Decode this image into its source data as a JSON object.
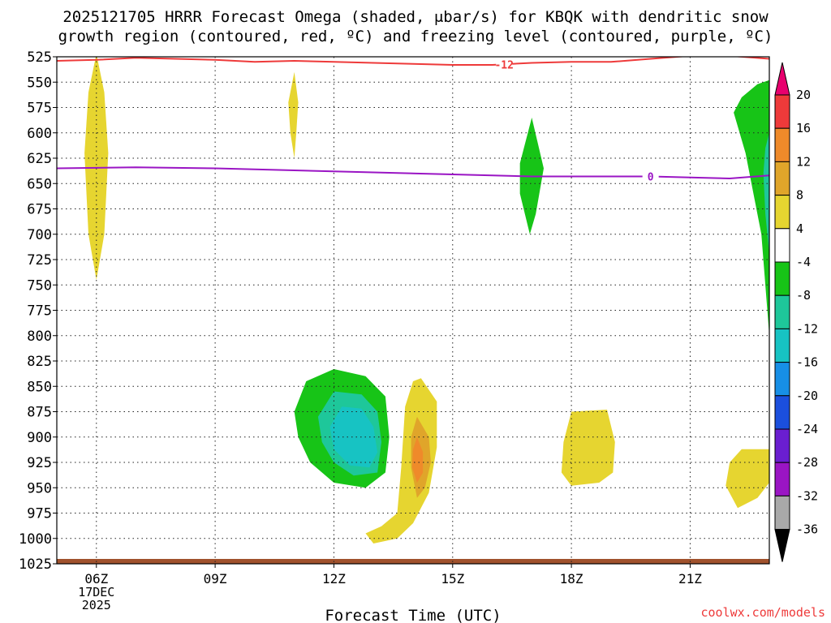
{
  "title": {
    "line1": "2025121705 HRRR Forecast Omega (shaded, μbar/s) for KBQK with dendritic snow",
    "line2": "growth region (contoured, red, ºC) and freezing level (contoured, purple, ºC)"
  },
  "credit": "coolwx.com/models",
  "chart_data": {
    "type": "heatmap",
    "xlabel": "Forecast Time (UTC)",
    "ylabel": "",
    "x_ticks": [
      {
        "label": "06Z",
        "sub": [
          "17DEC",
          "2025"
        ],
        "hour": 6
      },
      {
        "label": "09Z",
        "hour": 9
      },
      {
        "label": "12Z",
        "hour": 12
      },
      {
        "label": "15Z",
        "hour": 15
      },
      {
        "label": "18Z",
        "hour": 18
      },
      {
        "label": "21Z",
        "hour": 21
      }
    ],
    "xlim": [
      5,
      23
    ],
    "ylim": [
      1025,
      525
    ],
    "y_ticks": [
      525,
      550,
      575,
      600,
      625,
      650,
      675,
      700,
      725,
      750,
      775,
      800,
      825,
      850,
      875,
      900,
      925,
      950,
      975,
      1000,
      1025
    ],
    "colorbar": {
      "levels": [
        20,
        16,
        12,
        8,
        4,
        -4,
        -8,
        -12,
        -16,
        -20,
        -24,
        -28,
        -32,
        -36
      ],
      "colors": [
        "#e8006e",
        "#ee3a3a",
        "#ef8a2a",
        "#e0a52a",
        "#e6d530",
        "#ffffff",
        "#17c417",
        "#1ec79a",
        "#17c3c3",
        "#178fe6",
        "#1b4fdd",
        "#6a1ed0",
        "#9a15c4",
        "#a9a9a9",
        "#000000"
      ]
    },
    "contours": [
      {
        "name": "-12",
        "color": "#ee3a3a",
        "points": [
          [
            5.0,
            529
          ],
          [
            6.0,
            528
          ],
          [
            7.0,
            526
          ],
          [
            8.0,
            527
          ],
          [
            9.0,
            528
          ],
          [
            10.0,
            530
          ],
          [
            11.0,
            529
          ],
          [
            12.0,
            530
          ],
          [
            13.0,
            531
          ],
          [
            14.0,
            532
          ],
          [
            15.0,
            533
          ],
          [
            16.0,
            533
          ],
          [
            17.0,
            531
          ],
          [
            18.0,
            530
          ],
          [
            19.0,
            530
          ],
          [
            20.0,
            527
          ],
          [
            21.0,
            524
          ],
          [
            22.0,
            524
          ],
          [
            23.0,
            527
          ]
        ]
      },
      {
        "name": "0",
        "color": "#9a15c4",
        "points": [
          [
            5.0,
            635
          ],
          [
            7.0,
            634
          ],
          [
            9.0,
            635
          ],
          [
            11.0,
            637
          ],
          [
            13.0,
            639
          ],
          [
            15.0,
            641
          ],
          [
            17.0,
            643
          ],
          [
            19.0,
            643
          ],
          [
            20.0,
            643
          ],
          [
            21.0,
            644
          ],
          [
            22.0,
            645
          ],
          [
            23.0,
            642
          ]
        ]
      }
    ],
    "surface_pressure": 1025,
    "omega_regions": [
      {
        "value": 6,
        "color": "#e6d530",
        "points": [
          [
            6.0,
            522
          ],
          [
            6.2,
            560
          ],
          [
            6.3,
            620
          ],
          [
            6.2,
            700
          ],
          [
            6.0,
            745
          ],
          [
            5.8,
            700
          ],
          [
            5.7,
            620
          ],
          [
            5.8,
            560
          ]
        ]
      },
      {
        "value": 6,
        "color": "#e6d530",
        "points": [
          [
            11.0,
            540
          ],
          [
            11.1,
            570
          ],
          [
            11.05,
            600
          ],
          [
            11.0,
            625
          ],
          [
            10.9,
            600
          ],
          [
            10.85,
            570
          ]
        ]
      },
      {
        "value": -6,
        "color": "#17c417",
        "points": [
          [
            17.0,
            585
          ],
          [
            17.3,
            635
          ],
          [
            17.1,
            680
          ],
          [
            16.95,
            700
          ],
          [
            16.7,
            660
          ],
          [
            16.7,
            630
          ]
        ]
      },
      {
        "value": -6,
        "color": "#17c417",
        "points": [
          [
            23.0,
            548
          ],
          [
            23.0,
            800
          ],
          [
            22.8,
            700
          ],
          [
            22.4,
            620
          ],
          [
            22.1,
            580
          ],
          [
            22.3,
            565
          ],
          [
            22.7,
            552
          ]
        ]
      },
      {
        "value": -10,
        "color": "#1ec79a",
        "points": [
          [
            23.0,
            600
          ],
          [
            23.0,
            720
          ],
          [
            22.9,
            680
          ],
          [
            22.85,
            640
          ],
          [
            22.9,
            615
          ]
        ]
      },
      {
        "value": -6,
        "color": "#17c417",
        "points": [
          [
            11.0,
            875
          ],
          [
            11.3,
            845
          ],
          [
            12.0,
            833
          ],
          [
            12.8,
            840
          ],
          [
            13.3,
            860
          ],
          [
            13.4,
            900
          ],
          [
            13.3,
            935
          ],
          [
            12.8,
            950
          ],
          [
            12.0,
            945
          ],
          [
            11.4,
            925
          ],
          [
            11.1,
            900
          ]
        ]
      },
      {
        "value": -10,
        "color": "#1ec79a",
        "points": [
          [
            11.6,
            880
          ],
          [
            12.0,
            855
          ],
          [
            12.7,
            858
          ],
          [
            13.1,
            875
          ],
          [
            13.2,
            905
          ],
          [
            13.1,
            935
          ],
          [
            12.5,
            938
          ],
          [
            12.0,
            925
          ],
          [
            11.7,
            905
          ]
        ]
      },
      {
        "value": -14,
        "color": "#17c3c3",
        "points": [
          [
            11.9,
            890
          ],
          [
            12.2,
            870
          ],
          [
            12.7,
            872
          ],
          [
            13.0,
            890
          ],
          [
            13.1,
            915
          ],
          [
            12.9,
            930
          ],
          [
            12.4,
            928
          ],
          [
            12.0,
            912
          ]
        ]
      },
      {
        "value": 6,
        "color": "#e6d530",
        "points": [
          [
            13.8,
            870
          ],
          [
            14.0,
            845
          ],
          [
            14.2,
            842
          ],
          [
            14.6,
            865
          ],
          [
            14.6,
            910
          ],
          [
            14.4,
            955
          ],
          [
            14.0,
            985
          ],
          [
            13.6,
            1000
          ],
          [
            13.0,
            1005
          ],
          [
            12.8,
            995
          ],
          [
            13.2,
            988
          ],
          [
            13.6,
            975
          ],
          [
            13.7,
            930
          ],
          [
            13.75,
            900
          ]
        ]
      },
      {
        "value": 10,
        "color": "#e0a52a",
        "points": [
          [
            14.1,
            880
          ],
          [
            14.4,
            900
          ],
          [
            14.45,
            925
          ],
          [
            14.3,
            950
          ],
          [
            14.1,
            960
          ],
          [
            13.95,
            930
          ],
          [
            13.95,
            900
          ]
        ]
      },
      {
        "value": 14,
        "color": "#ef8a2a",
        "points": [
          [
            14.1,
            900
          ],
          [
            14.25,
            915
          ],
          [
            14.25,
            935
          ],
          [
            14.1,
            945
          ],
          [
            13.98,
            930
          ],
          [
            14.0,
            912
          ]
        ]
      },
      {
        "value": 6,
        "color": "#e6d530",
        "points": [
          [
            18.0,
            875
          ],
          [
            18.9,
            873
          ],
          [
            19.1,
            905
          ],
          [
            19.05,
            935
          ],
          [
            18.7,
            945
          ],
          [
            18.0,
            948
          ],
          [
            17.75,
            935
          ],
          [
            17.8,
            905
          ]
        ]
      },
      {
        "value": 6,
        "color": "#e6d530",
        "points": [
          [
            22.0,
            925
          ],
          [
            22.3,
            912
          ],
          [
            23.0,
            912
          ],
          [
            23.0,
            945
          ],
          [
            22.7,
            960
          ],
          [
            22.2,
            970
          ],
          [
            21.9,
            948
          ]
        ]
      }
    ]
  }
}
